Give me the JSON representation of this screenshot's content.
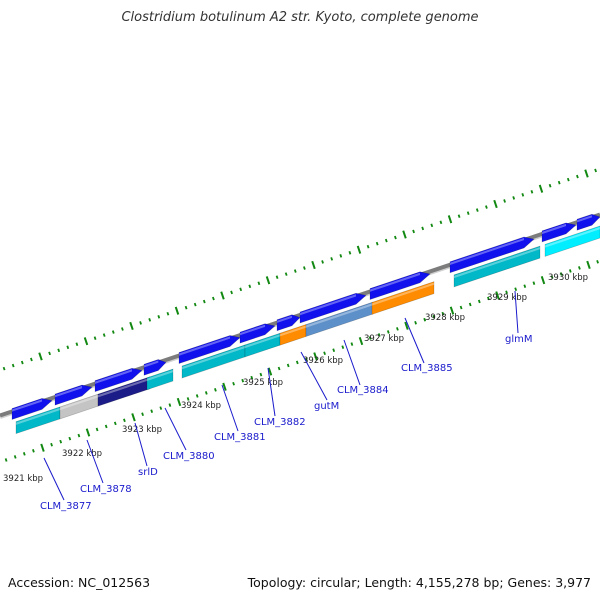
{
  "title": "Clostridium botulinum A2 str. Kyoto, complete genome",
  "footer": {
    "accession": "Accession: NC_012563",
    "summary": "Topology: circular; Length: 4,155,278 bp; Genes: 3,977"
  },
  "colors": {
    "backbone": "#7c7c7c",
    "tick": "#118811",
    "forward_gene": "#1111ee",
    "forward_gene_highlight": "#00eeff",
    "reverse_gene": "#00b8c8",
    "grey_gene": "#c4c4c4",
    "dark_gene": "#1c1c88",
    "orange_gene": "#ff8c00",
    "steel_gene": "#5d8fc9",
    "label": "#1a1acc"
  },
  "kbp_labels": [
    "3921 kbp",
    "3922 kbp",
    "3923 kbp",
    "3924 kbp",
    "3925 kbp",
    "3926 kbp",
    "3927 kbp",
    "3928 kbp",
    "3929 kbp",
    "3930 kbp"
  ],
  "gene_labels": [
    "CLM_3877",
    "CLM_3878",
    "srlD",
    "CLM_3880",
    "CLM_3881",
    "CLM_3882",
    "gutM",
    "CLM_3884",
    "CLM_3885",
    "glmM"
  ]
}
